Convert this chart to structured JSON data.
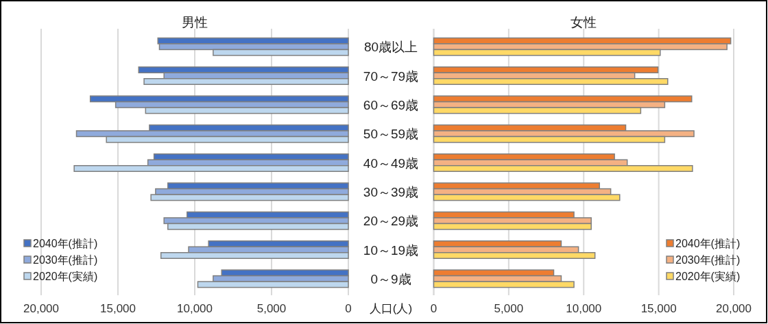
{
  "chart_data": [
    {
      "type": "bar",
      "orientation": "horizontal",
      "title": "男性",
      "xlabel": "人口(人)",
      "categories": [
        "80歳以上",
        "70～79歳",
        "60～69歳",
        "50～59歳",
        "40～49歳",
        "30～39歳",
        "20～29歳",
        "10～19歳",
        "0～9歳"
      ],
      "series": [
        {
          "name": "2040年(推計)",
          "color": "#4472c4",
          "values": [
            12400,
            13650,
            16800,
            12950,
            12650,
            11750,
            10500,
            9100,
            8250
          ]
        },
        {
          "name": "2030年(推計)",
          "color": "#8faadc",
          "values": [
            12300,
            12000,
            15150,
            17700,
            13050,
            12550,
            12000,
            10400,
            8800
          ]
        },
        {
          "name": "2020年(実績)",
          "color": "#bdd7ee",
          "values": [
            8800,
            13300,
            13200,
            15750,
            17850,
            12850,
            11750,
            12200,
            9800
          ]
        }
      ],
      "xlim": [
        20000,
        0
      ],
      "xticks": [
        {
          "value": 20000,
          "label": "20,000"
        },
        {
          "value": 15000,
          "label": "15,000"
        },
        {
          "value": 10000,
          "label": "10,000"
        },
        {
          "value": 5000,
          "label": "5,000"
        },
        0
      ],
      "grid": "x",
      "legend": "bottom left"
    },
    {
      "type": "bar",
      "orientation": "horizontal",
      "title": "女性",
      "categories": [
        null,
        null,
        null,
        null,
        null,
        null,
        null,
        null,
        null
      ],
      "series": [
        {
          "name": "2040年(推計)",
          "color": "#ed7d31",
          "values": [
            19800,
            14950,
            17200,
            12800,
            12050,
            11050,
            9350,
            8500,
            8000
          ]
        },
        {
          "name": "2030年(推計)",
          "color": "#f4b183",
          "values": [
            19550,
            13400,
            15400,
            17350,
            12900,
            11800,
            10500,
            9650,
            8500
          ]
        },
        {
          "name": "2020年(実績)",
          "color": "#ffd966",
          "values": [
            15100,
            15600,
            13800,
            15400,
            17250,
            12400,
            10500,
            10750,
            9350
          ]
        }
      ],
      "xlim": [
        0,
        20000
      ],
      "xticks": [
        0,
        {
          "value": 5000,
          "label": "5,000"
        },
        {
          "value": 10000,
          "label": "10,000"
        },
        {
          "value": 15000,
          "label": "15,000"
        },
        {
          "value": 20000,
          "label": "20,000"
        }
      ],
      "grid": "x",
      "legend": "bottom right"
    }
  ]
}
